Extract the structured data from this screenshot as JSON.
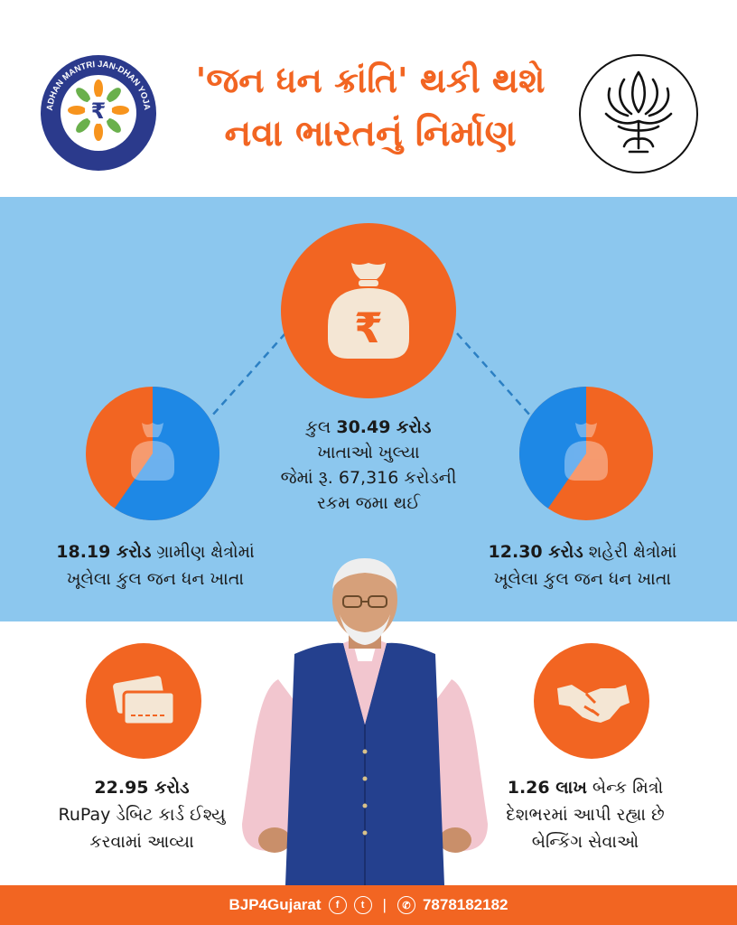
{
  "colors": {
    "accent": "#f26522",
    "band": "#8cc7ee",
    "pie_blue": "#1e88e5",
    "logo_navy": "#2b3a8c"
  },
  "header": {
    "title_line1": "'જન ધન ક્રાંતિ' થકી થશે",
    "title_line2": "નવા ભારતનું નિર્માણ",
    "logo_left": {
      "icon": "pmjdy-rupee-logo",
      "ring_text_top": "PRADHAN MANTRI JAN-DHAN YOJANA",
      "ring_text_bottom": "MERA KHATA BHAGYA VIDHATA"
    },
    "logo_right": {
      "icon": "lotus-logo"
    }
  },
  "center": {
    "icon": "money-bag-rupee-icon",
    "line1_prefix": "કુલ ",
    "line1_bold": "30.49 કરોડ",
    "line2": "ખાતાઓ ખુલ્યા",
    "line3": "જેમાં રૂ. 67,316 કરોડની",
    "line4": "રકમ જમા થઈ"
  },
  "rural": {
    "share": 0.5966,
    "value": "18.19 કરોડ",
    "text1": " ગ્રામીણ ક્ષેત્રોમાં",
    "text2": "ખૂલેલા કુલ જન ધન ખાતા"
  },
  "urban": {
    "share": 0.4034,
    "value": "12.30 કરોડ",
    "text1": " શહેરી ક્ષેત્રોમાં",
    "text2": "ખૂલેલા કુલ જન ધન ખાતા"
  },
  "rupay": {
    "icon": "debit-cards-icon",
    "value": "22.95 કરોડ",
    "line2": "RuPay ડેબિટ કાર્ડ ઈશ્યુ",
    "line3": "કરવામાં આવ્યા"
  },
  "bank_mitra": {
    "icon": "handshake-icon",
    "value": "1.26 લાખ",
    "text1": " બેન્ક મિત્રો",
    "line2": "દેશભરમાં આપી રહ્યા છે",
    "line3": "બેન્કિંગ સેવાઓ"
  },
  "footer": {
    "handle": "BJP4Gujarat",
    "facebook_icon": "f",
    "twitter_icon": "t",
    "separator": "|",
    "phone_icon": "✆",
    "phone": "7878182182"
  }
}
